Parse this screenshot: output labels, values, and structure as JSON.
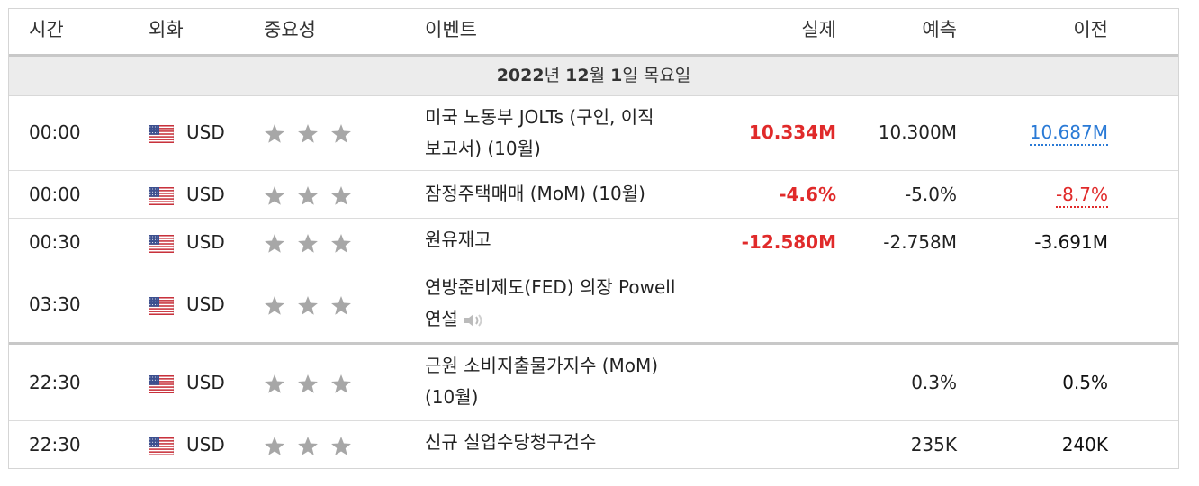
{
  "header": {
    "time": "시간",
    "currency": "외화",
    "importance": "중요성",
    "event": "이벤트",
    "actual": "실제",
    "forecast": "예측",
    "previous": "이전"
  },
  "date_row": {
    "year": "2022",
    "year_suffix": "년 ",
    "month": "12",
    "month_suffix": "월 ",
    "day": "1",
    "day_suffix": "일 목요일"
  },
  "events": [
    {
      "time": "00:00",
      "currency": "USD",
      "event_line1": "미국 노동부 JOLTs (구인, 이직",
      "event_line2": "보고서) (10월)",
      "actual": "10.334M",
      "forecast": "10.300M",
      "previous": "10.687M",
      "stars": 3
    },
    {
      "time": "00:00",
      "currency": "USD",
      "event_line1": "잠정주택매매 (MoM) (10월)",
      "actual": "-4.6%",
      "forecast": "-5.0%",
      "previous": "-8.7%",
      "stars": 3
    },
    {
      "time": "00:30",
      "currency": "USD",
      "event_line1": "원유재고",
      "actual": "-12.580M",
      "forecast": "-2.758M",
      "previous": "-3.691M",
      "stars": 3
    },
    {
      "time": "03:30",
      "currency": "USD",
      "event_line1": "연방준비제도(FED) 의장 Powell",
      "event_line2": "연설",
      "actual": "",
      "forecast": "",
      "previous": "",
      "stars": 3
    },
    {
      "time": "22:30",
      "currency": "USD",
      "event_line1": "근원 소비지출물가지수 (MoM)",
      "event_line2": "(10월)",
      "actual": "",
      "forecast": "0.3%",
      "previous": "0.5%",
      "stars": 3
    },
    {
      "time": "22:30",
      "currency": "USD",
      "event_line1": "신규 실업수당청구건수",
      "actual": "",
      "forecast": "235K",
      "previous": "240K",
      "stars": 3
    }
  ],
  "colors": {
    "negative": "#e02a2a",
    "link_blue": "#2a7ad6",
    "star": "#a7a7a7"
  },
  "icons": {
    "flag": "us-flag-icon",
    "star": "star-icon",
    "speaker": "speaker-icon"
  }
}
